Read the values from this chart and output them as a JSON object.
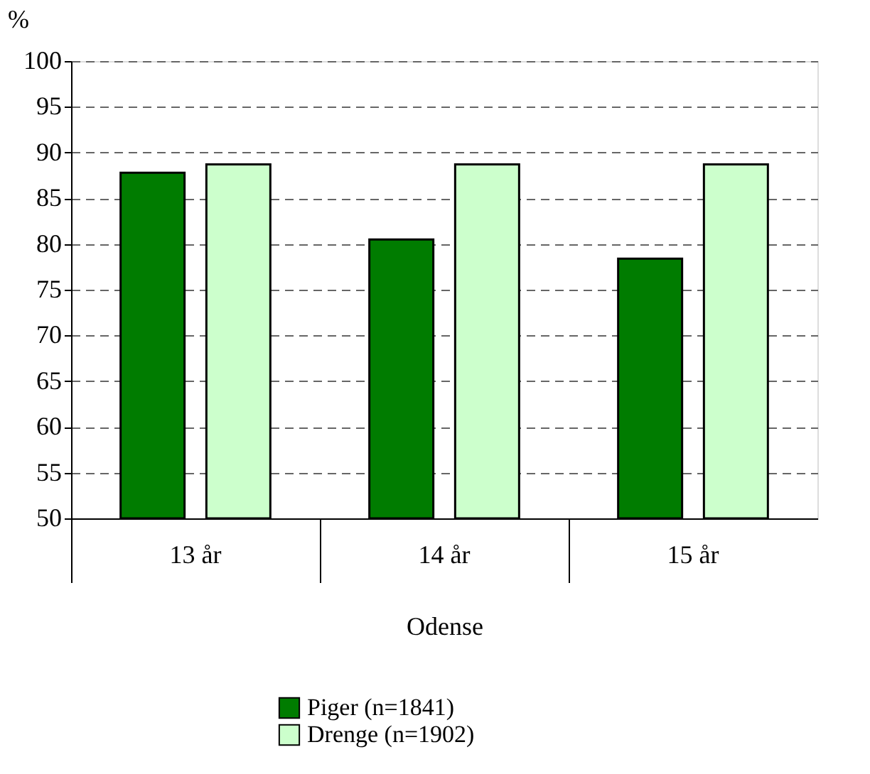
{
  "chart_data": {
    "type": "bar",
    "ylabel": "%",
    "xlabel": "Odense",
    "categories": [
      "13 år",
      "14 år",
      "15 år"
    ],
    "series": [
      {
        "name": "Piger (n=1841)",
        "color": "#007c00",
        "values": [
          87.8,
          80.5,
          78.4
        ]
      },
      {
        "name": "Drenge (n=1902)",
        "color": "#ccffcc",
        "values": [
          88.7,
          88.7,
          88.7
        ]
      }
    ],
    "ylim": [
      50,
      100
    ],
    "yticks": [
      50,
      55,
      60,
      65,
      70,
      75,
      80,
      85,
      90,
      95,
      100
    ],
    "grid": "y",
    "legend": "bottom"
  }
}
